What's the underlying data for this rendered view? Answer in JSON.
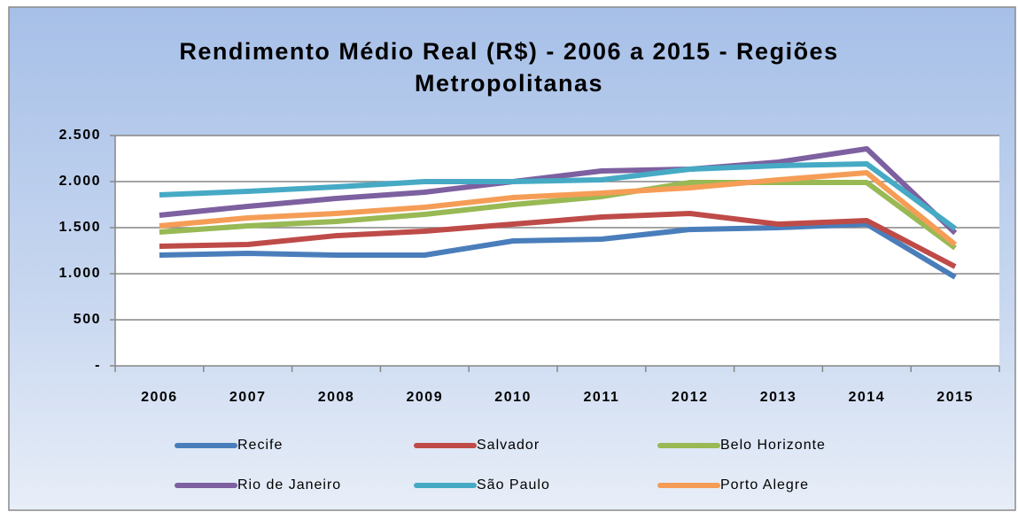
{
  "chart_data": {
    "type": "line",
    "title": "Rendimento Médio Real (R$) - 2006 a 2015 - Regiões Metropolitanas",
    "categories": [
      "2006",
      "2007",
      "2008",
      "2009",
      "2010",
      "2011",
      "2012",
      "2013",
      "2014",
      "2015"
    ],
    "ylim": [
      0,
      2500
    ],
    "yticks": [
      {
        "value": 0,
        "label": "-"
      },
      500,
      {
        "value": 1000,
        "label": "1.000"
      },
      {
        "value": 1500,
        "label": "1.500"
      },
      {
        "value": 2000,
        "label": "2.000"
      },
      {
        "value": 2500,
        "label": "2.500"
      }
    ],
    "grid": true,
    "legend": "bottom",
    "series": [
      {
        "name": "Recife",
        "color": "#4a7ebb",
        "values": [
          1202,
          1221,
          1202,
          1202,
          1356,
          1375,
          1480,
          1500,
          1538,
          962
        ]
      },
      {
        "name": "Salvador",
        "color": "#be4b48",
        "values": [
          1298,
          1317,
          1413,
          1462,
          1538,
          1615,
          1654,
          1538,
          1577,
          1077
        ]
      },
      {
        "name": "Belo Horizonte",
        "color": "#98b954",
        "values": [
          1452,
          1519,
          1567,
          1644,
          1750,
          1837,
          1990,
          1990,
          1990,
          1279
        ]
      },
      {
        "name": "Rio de Janeiro",
        "color": "#7d60a0",
        "values": [
          1635,
          1731,
          1817,
          1885,
          2000,
          2115,
          2135,
          2212,
          2356,
          1442
        ]
      },
      {
        "name": "São Paulo",
        "color": "#46aac5",
        "values": [
          1856,
          1894,
          1942,
          2000,
          2000,
          2019,
          2135,
          2173,
          2192,
          1490
        ]
      },
      {
        "name": "Porto Alegre",
        "color": "#f59d56",
        "values": [
          1519,
          1606,
          1654,
          1721,
          1827,
          1875,
          1933,
          2019,
          2096,
          1317
        ]
      }
    ]
  }
}
